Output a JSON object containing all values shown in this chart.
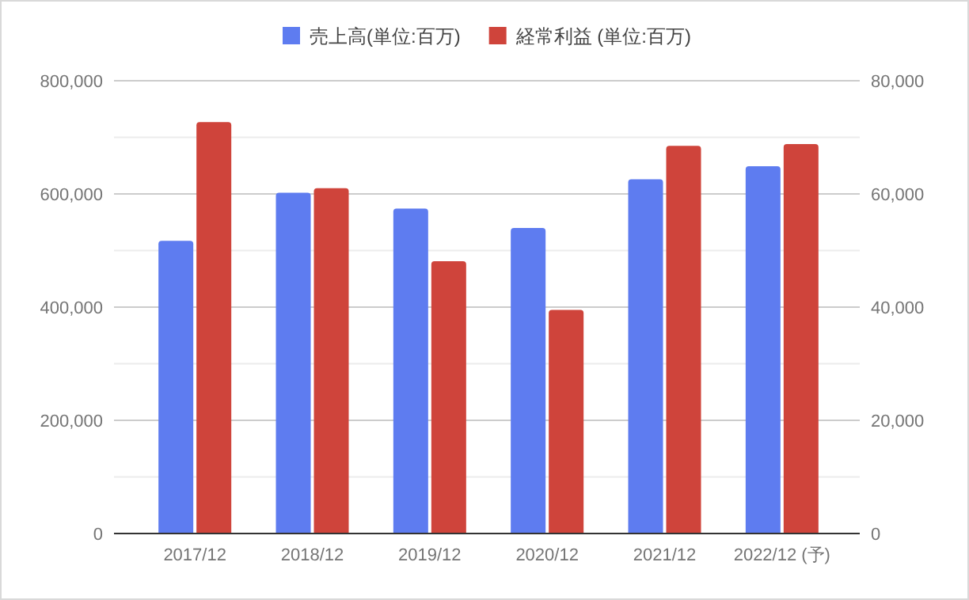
{
  "chart_data": {
    "type": "bar",
    "categories": [
      "2017/12",
      "2018/12",
      "2019/12",
      "2020/12",
      "2021/12",
      "2022/12 (予)"
    ],
    "series": [
      {
        "name": "売上高(単位:百万)",
        "color": "#5e7cf0",
        "values": [
          517000,
          602000,
          574000,
          540000,
          626000,
          649000
        ]
      },
      {
        "name": "経常利益 (単位:百万)",
        "color": "#cf443b",
        "axis": "y2",
        "values": [
          72700,
          61000,
          48100,
          39500,
          68500,
          68800
        ]
      }
    ],
    "ylim": [
      0,
      800000
    ],
    "yticks": [
      0,
      {
        "value": 100000,
        "label": null
      },
      {
        "value": 200000,
        "label": "200,000"
      },
      {
        "value": 300000,
        "label": null
      },
      {
        "value": 400000,
        "label": "400,000"
      },
      {
        "value": 500000,
        "label": null
      },
      {
        "value": 600000,
        "label": "600,000"
      },
      {
        "value": 700000,
        "label": null
      },
      {
        "value": 800000,
        "label": "800,000"
      }
    ],
    "y2lim": [
      0,
      80000
    ],
    "y2ticks": [
      0,
      {
        "value": 20000,
        "label": "20,000"
      },
      {
        "value": 40000,
        "label": "40,000"
      },
      {
        "value": 60000,
        "label": "60,000"
      },
      {
        "value": 80000,
        "label": "80,000"
      }
    ],
    "grid": "y",
    "legend": "top"
  }
}
